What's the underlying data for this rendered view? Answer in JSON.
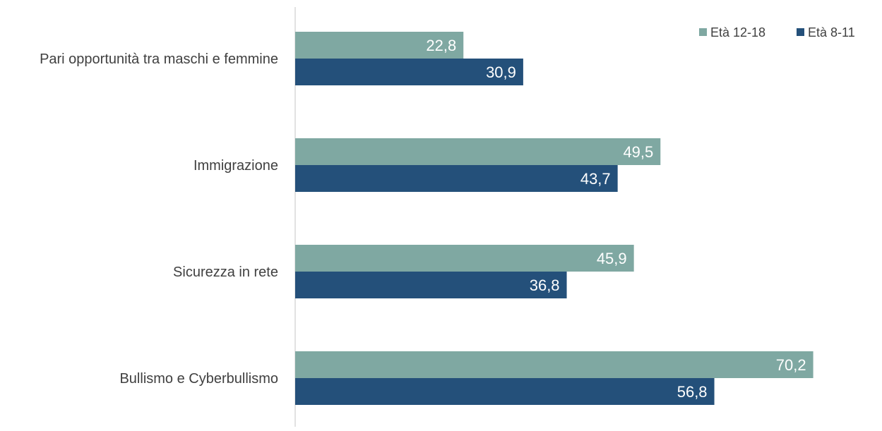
{
  "chart_data": {
    "type": "bar",
    "orientation": "horizontal",
    "categories": [
      "Pari opportunità tra maschi e femmine",
      "Immigrazione",
      "Sicurezza in rete",
      "Bullismo e Cyberbullismo"
    ],
    "series": [
      {
        "name": "Età 12-18",
        "color": "#7fa8a2",
        "values": [
          22.8,
          49.5,
          45.9,
          70.2
        ],
        "labels": [
          "22,8",
          "49,5",
          "45,9",
          "70,2"
        ]
      },
      {
        "name": "Età 8-11",
        "color": "#24507a",
        "values": [
          30.9,
          43.7,
          36.8,
          56.8
        ],
        "labels": [
          "30,9",
          "43,7",
          "36,8",
          "56,8"
        ]
      }
    ],
    "xlim": [
      0,
      80
    ],
    "grid": false,
    "legend_position": "top-right",
    "title": "",
    "xlabel": "",
    "ylabel": ""
  }
}
